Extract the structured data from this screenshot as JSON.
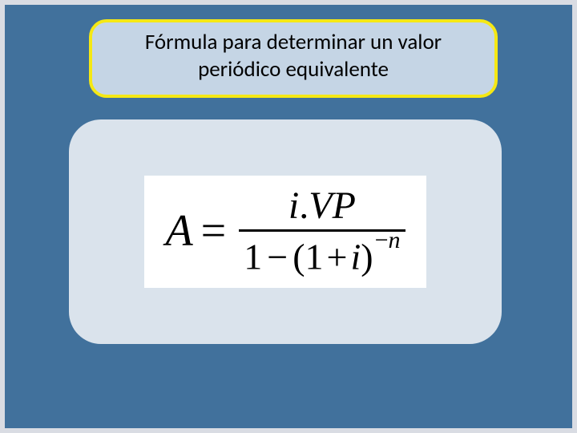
{
  "slide": {
    "background_color": "#41719c",
    "border_color": "#d9dce3"
  },
  "title": {
    "line1": "Fórmula para determinar un valor",
    "line2": "periódico equivalente",
    "box_bg": "#c5d5e5",
    "box_border": "#f5e814",
    "text_color": "#000000",
    "font_size_pt": 20
  },
  "formula": {
    "lhs": "A",
    "equals": "=",
    "numerator": {
      "i": "i",
      "dot": ".",
      "VP": "VP"
    },
    "denominator": {
      "one_a": "1",
      "minus": "−",
      "lparen": "(",
      "one_b": "1",
      "plus": "+",
      "i": "i",
      "rparen": ")",
      "exp_neg": "−",
      "exp_n": "n"
    },
    "box_bg": "#dae3ec",
    "inner_bg": "#ffffff",
    "text_color": "#000000"
  }
}
